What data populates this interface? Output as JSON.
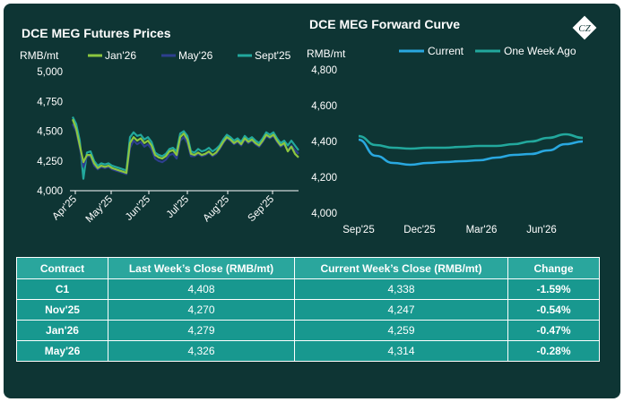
{
  "colors": {
    "background": "#0e3534",
    "jan26": "#8cc63f",
    "may26": "#2e3f8f",
    "sept25": "#22a89d",
    "current": "#29a8e0",
    "one_week_ago": "#22a89d",
    "table_header": "#2aa69d",
    "table_row": "#18988f"
  },
  "chart_data": [
    {
      "type": "line",
      "title": "DCE MEG Futures Prices",
      "ylabel": "RMB/mt",
      "ylim": [
        4000,
        5000
      ],
      "yticks": [
        "5,000",
        "4,750",
        "4,500",
        "4,250",
        "4,000"
      ],
      "xticks": [
        "Apr'25",
        "May'25",
        "Jun'25",
        "Jul'25",
        "Aug'25",
        "Sep'25"
      ],
      "legend_position": "top",
      "series": [
        {
          "name": "Jan'26",
          "values": [
            4600,
            4520,
            4380,
            4240,
            4300,
            4300,
            4230,
            4190,
            4210,
            4200,
            4210,
            4190,
            4180,
            4170,
            4160,
            4150,
            4400,
            4450,
            4420,
            4440,
            4400,
            4420,
            4380,
            4300,
            4280,
            4270,
            4290,
            4330,
            4340,
            4300,
            4450,
            4480,
            4430,
            4310,
            4300,
            4320,
            4300,
            4310,
            4330,
            4300,
            4320,
            4360,
            4410,
            4450,
            4430,
            4400,
            4420,
            4390,
            4440,
            4410,
            4430,
            4400,
            4380,
            4420,
            4470,
            4450,
            4470,
            4420,
            4380,
            4400,
            4330,
            4370,
            4310,
            4280
          ]
        },
        {
          "name": "May'26",
          "values": [
            4560,
            4500,
            4360,
            4200,
            4290,
            4290,
            4210,
            4180,
            4200,
            4190,
            4200,
            4180,
            4170,
            4160,
            4150,
            4140,
            4360,
            4420,
            4390,
            4410,
            4370,
            4390,
            4350,
            4270,
            4250,
            4240,
            4260,
            4300,
            4310,
            4270,
            4420,
            4450,
            4400,
            4290,
            4290,
            4310,
            4290,
            4300,
            4320,
            4290,
            4310,
            4350,
            4400,
            4440,
            4420,
            4390,
            4410,
            4380,
            4430,
            4400,
            4420,
            4390,
            4370,
            4410,
            4460,
            4440,
            4460,
            4410,
            4370,
            4390,
            4340,
            4380,
            4340,
            4310
          ]
        },
        {
          "name": "Sept'25",
          "values": [
            4620,
            4560,
            4420,
            4100,
            4320,
            4330,
            4250,
            4210,
            4230,
            4220,
            4230,
            4210,
            4200,
            4190,
            4180,
            4170,
            4450,
            4490,
            4460,
            4470,
            4430,
            4450,
            4410,
            4320,
            4300,
            4290,
            4310,
            4350,
            4360,
            4330,
            4480,
            4500,
            4460,
            4330,
            4320,
            4350,
            4330,
            4340,
            4360,
            4330,
            4350,
            4380,
            4430,
            4470,
            4450,
            4420,
            4440,
            4410,
            4460,
            4430,
            4450,
            4420,
            4400,
            4440,
            4490,
            4470,
            4490,
            4440,
            4400,
            4420,
            4380,
            4420,
            4380,
            4340
          ]
        }
      ]
    },
    {
      "type": "line",
      "title": "DCE MEG Forward Curve",
      "ylabel": "RMB/mt",
      "ylim": [
        4000,
        4800
      ],
      "yticks": [
        "4,800",
        "4,600",
        "4,400",
        "4,200",
        "4,000"
      ],
      "xticks": [
        "Sep'25",
        "Dec'25",
        "Mar'26",
        "Jun'26"
      ],
      "legend_position": "top",
      "series": [
        {
          "name": "Current",
          "values": [
            4410,
            4320,
            4280,
            4270,
            4280,
            4285,
            4290,
            4295,
            4310,
            4325,
            4330,
            4350,
            4385,
            4400
          ]
        },
        {
          "name": "One Week Ago",
          "values": [
            4430,
            4380,
            4365,
            4360,
            4365,
            4365,
            4370,
            4375,
            4375,
            4385,
            4400,
            4420,
            4440,
            4420
          ]
        }
      ]
    }
  ],
  "table": {
    "headers": [
      "Contract",
      "Last Week’s Close (RMB/mt)",
      "Current Week’s Close (RMB/mt)",
      "Change"
    ],
    "rows": [
      [
        "C1",
        "4,408",
        "4,338",
        "-1.59%"
      ],
      [
        "Nov'25",
        "4,270",
        "4,247",
        "-0.54%"
      ],
      [
        "Jan'26",
        "4,279",
        "4,259",
        "-0.47%"
      ],
      [
        "May'26",
        "4,326",
        "4,314",
        "-0.28%"
      ]
    ]
  },
  "logo": {
    "icon": "cz-logo-icon",
    "text": "CZ"
  }
}
